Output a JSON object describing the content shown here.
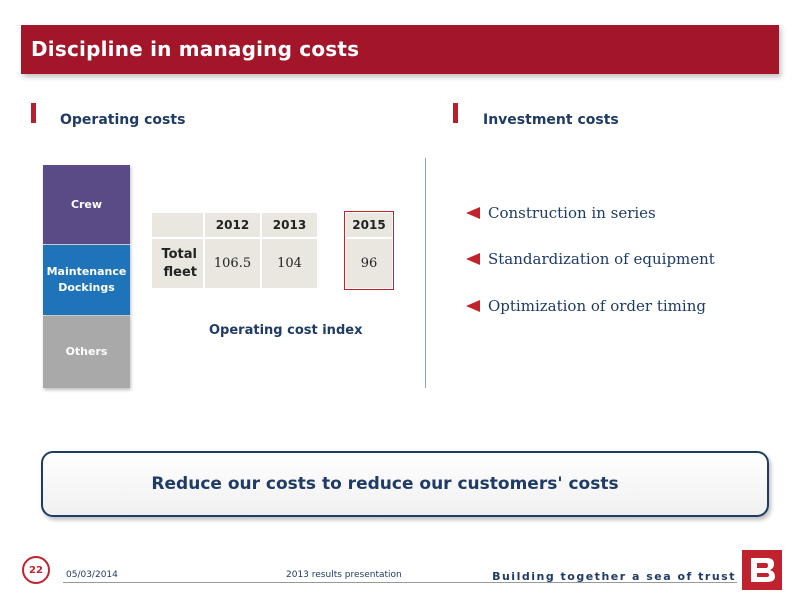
{
  "title": "Discipline in managing costs",
  "left_heading": "Operating costs",
  "right_heading": "Investment costs",
  "cost_stack": [
    "Crew",
    "Maintenance Dockings",
    "Others"
  ],
  "cost_stack_lines": {
    "maint_line1": "Maintenance",
    "maint_line2": "Dockings"
  },
  "table": {
    "years": [
      "2012",
      "2013",
      "2015"
    ],
    "row_label_line1": "Total",
    "row_label_line2": "fleet",
    "values": [
      "106.5",
      "104",
      "96"
    ]
  },
  "index_caption": "Operating cost index",
  "bullets": [
    "Construction in series",
    "Standardization of equipment",
    "Optimization of order timing"
  ],
  "callout": "Reduce our costs to reduce our customers' costs",
  "footer": {
    "page": "22",
    "date": "05/03/2014",
    "presentation": "2013 results presentation",
    "tagline": "Building together a sea of trust"
  },
  "colors": {
    "accent": "#a3162a",
    "navy": "#1f3b66",
    "crew": "#5a4a86",
    "maintenance": "#1f73b8",
    "others": "#a9a9a9"
  }
}
